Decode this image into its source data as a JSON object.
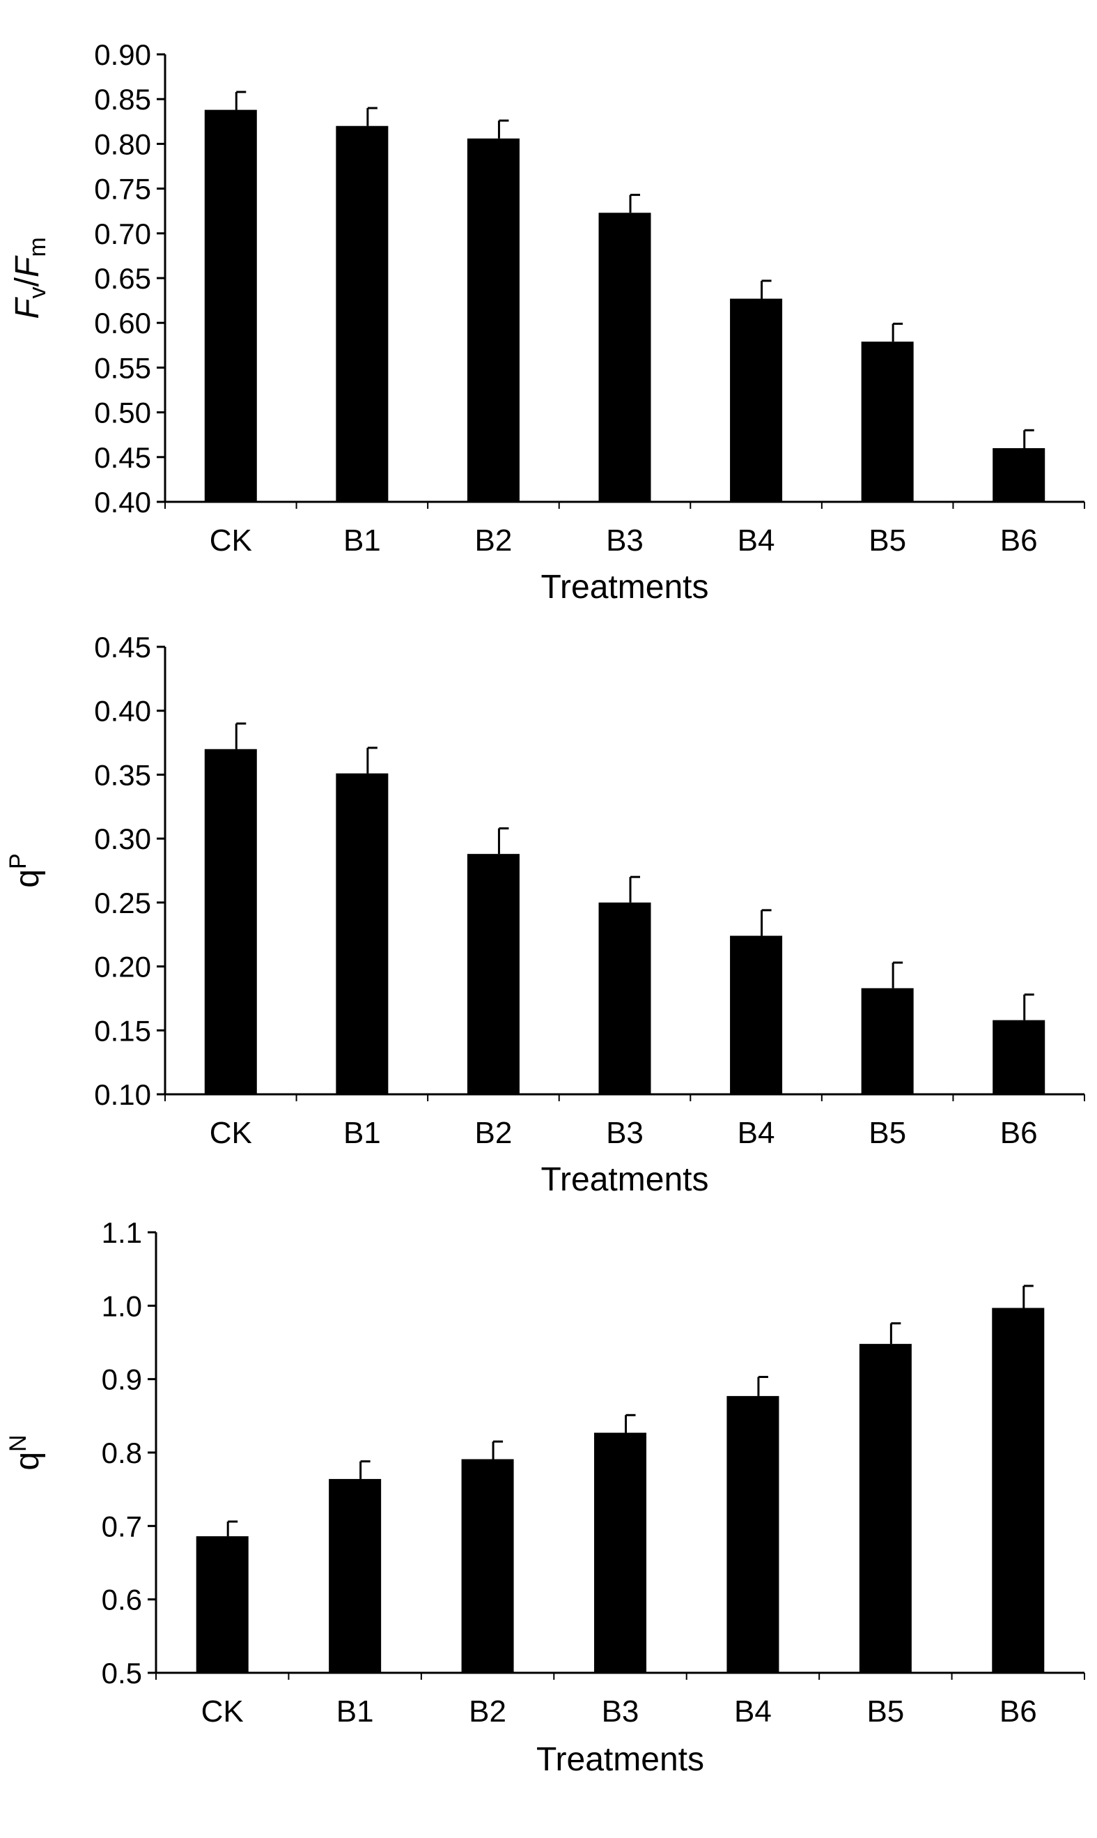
{
  "chart_data": [
    {
      "type": "bar",
      "ylabel_parts": [
        {
          "text": "F",
          "italic": true,
          "sub": false
        },
        {
          "text": "v",
          "italic": false,
          "sub": true
        },
        {
          "text": "/",
          "italic": false,
          "sub": false
        },
        {
          "text": "F",
          "italic": true,
          "sub": false
        },
        {
          "text": "m",
          "italic": false,
          "sub": true
        }
      ],
      "xlabel": "Treatments",
      "categories": [
        "CK",
        "B1",
        "B2",
        "B3",
        "B4",
        "B5",
        "B6"
      ],
      "values": [
        0.838,
        0.82,
        0.806,
        0.723,
        0.627,
        0.579,
        0.46
      ],
      "errors": [
        0.02,
        0.02,
        0.02,
        0.02,
        0.02,
        0.02,
        0.02
      ],
      "ylim": [
        0.4,
        0.9
      ],
      "yticks": [
        "0.40",
        "0.45",
        "0.50",
        "0.55",
        "0.60",
        "0.65",
        "0.70",
        "0.75",
        "0.80",
        "0.85",
        "0.90"
      ],
      "grid": false,
      "bar_color": "#000000"
    },
    {
      "type": "bar",
      "ylabel_parts": [
        {
          "text": "q",
          "italic": false,
          "sup": false
        },
        {
          "text": "P",
          "italic": false,
          "sup": true
        }
      ],
      "xlabel": "Treatments",
      "categories": [
        "CK",
        "B1",
        "B2",
        "B3",
        "B4",
        "B5",
        "B6"
      ],
      "values": [
        0.37,
        0.351,
        0.288,
        0.25,
        0.224,
        0.183,
        0.158
      ],
      "errors": [
        0.02,
        0.02,
        0.02,
        0.02,
        0.02,
        0.02,
        0.02
      ],
      "ylim": [
        0.1,
        0.45
      ],
      "yticks": [
        "0.10",
        "0.15",
        "0.20",
        "0.25",
        "0.30",
        "0.35",
        "0.40",
        "0.45"
      ],
      "grid": false,
      "bar_color": "#000000"
    },
    {
      "type": "bar",
      "ylabel_parts": [
        {
          "text": "q",
          "italic": false,
          "sup": false
        },
        {
          "text": "N",
          "italic": false,
          "sup": true
        }
      ],
      "xlabel": "Treatments",
      "categories": [
        "CK",
        "B1",
        "B2",
        "B3",
        "B4",
        "B5",
        "B6"
      ],
      "values": [
        0.686,
        0.764,
        0.791,
        0.827,
        0.877,
        0.948,
        0.997
      ],
      "errors": [
        0.02,
        0.024,
        0.024,
        0.024,
        0.026,
        0.028,
        0.03
      ],
      "ylim": [
        0.5,
        1.1
      ],
      "yticks": [
        "0.5",
        "0.6",
        "0.7",
        "0.8",
        "0.9",
        "1.0",
        "1.1"
      ],
      "grid": false,
      "bar_color": "#000000"
    }
  ]
}
